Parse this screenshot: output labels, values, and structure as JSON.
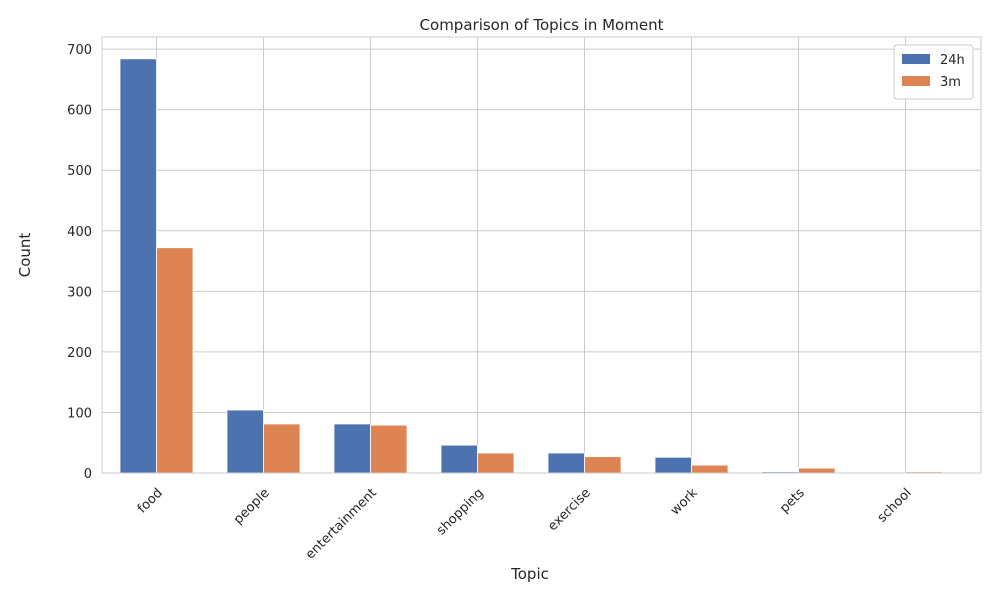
{
  "chart_data": {
    "type": "bar",
    "title": "Comparison of Topics in Moment",
    "xlabel": "Topic",
    "ylabel": "Count",
    "categories": [
      "food",
      "people",
      "entertainment",
      "shopping",
      "exercise",
      "work",
      "pets",
      "school"
    ],
    "series": [
      {
        "name": "24h",
        "color": "#4c72b0",
        "values": [
          684,
          104,
          81,
          46,
          33,
          26,
          2,
          1
        ]
      },
      {
        "name": "3m",
        "color": "#dd8452",
        "values": [
          372,
          81,
          79,
          33,
          27,
          13,
          8,
          2
        ]
      }
    ],
    "ylim": [
      0,
      720
    ],
    "yticks": [
      0,
      100,
      200,
      300,
      400,
      500,
      600,
      700
    ],
    "grid": true,
    "legend_position": "top-right"
  }
}
